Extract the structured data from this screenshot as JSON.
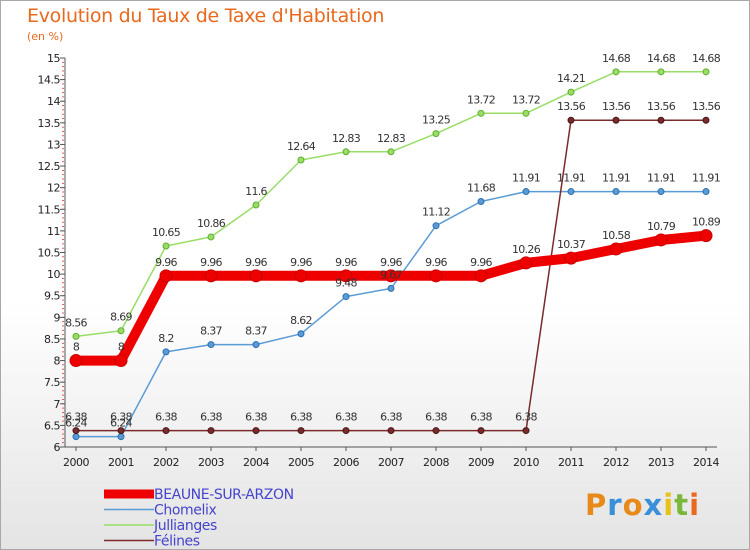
{
  "title": "Evolution du Taux de Taxe d'Habitation",
  "subtitle": "(en %)",
  "logo": {
    "text": "Proxiti",
    "letter_colors": [
      "#e88a1a",
      "#3a8fd8",
      "#e88a1a",
      "#3a8fd8",
      "#e8c21a",
      "#7ab83a",
      "#e8681e"
    ]
  },
  "chart_data": {
    "type": "line",
    "x": [
      2000,
      2001,
      2002,
      2003,
      2004,
      2005,
      2006,
      2007,
      2008,
      2009,
      2010,
      2011,
      2012,
      2013,
      2014
    ],
    "ylim": [
      6,
      15
    ],
    "yticks": [
      "6",
      "6.5",
      "7",
      "7.5",
      "8",
      "8.5",
      "9",
      "9.5",
      "10",
      "10.5",
      "11",
      "11.5",
      "12",
      "12.5",
      "13",
      "13.5",
      "14",
      "14.5",
      "15"
    ],
    "grid": false,
    "legend_position": "bottom-left",
    "series": [
      {
        "name": "BEAUNE-SUR-ARZON",
        "color": "#ee0000",
        "width": 10,
        "values": [
          8,
          8,
          9.96,
          9.96,
          9.96,
          9.96,
          9.96,
          9.96,
          9.96,
          9.96,
          10.26,
          10.37,
          10.58,
          10.79,
          10.89
        ],
        "labels": [
          "8",
          "8",
          "9.96",
          "9.96",
          "9.96",
          "9.96",
          "9.96",
          "9.96",
          "9.96",
          "9.96",
          "10.26",
          "10.37",
          "10.58",
          "10.79",
          "10.89"
        ]
      },
      {
        "name": "Chomelix",
        "color": "#5b9bd5",
        "width": 1.5,
        "values": [
          6.24,
          6.24,
          8.2,
          8.37,
          8.37,
          8.62,
          9.48,
          9.67,
          11.12,
          11.68,
          11.91,
          11.91,
          11.91,
          11.91,
          11.91
        ],
        "labels": [
          "6.24",
          "6.24",
          "8.2",
          "8.37",
          "8.37",
          "8.62",
          "9.48",
          "9.67",
          "11.12",
          "11.68",
          "11.91",
          "11.91",
          "11.91",
          "11.91",
          "11.91"
        ]
      },
      {
        "name": "Jullianges",
        "color": "#99dd66",
        "width": 1.5,
        "values": [
          8.56,
          8.69,
          10.65,
          10.86,
          11.6,
          12.64,
          12.83,
          12.83,
          13.25,
          13.72,
          13.72,
          14.21,
          14.68,
          14.68,
          14.68
        ],
        "labels": [
          "8.56",
          "8.69",
          "10.65",
          "10.86",
          "11.6",
          "12.64",
          "12.83",
          "12.83",
          "13.25",
          "13.72",
          "13.72",
          "14.21",
          "14.68",
          "14.68",
          "14.68"
        ]
      },
      {
        "name": "Félines",
        "color": "#7a2a2a",
        "width": 1.5,
        "values": [
          6.38,
          6.38,
          6.38,
          6.38,
          6.38,
          6.38,
          6.38,
          6.38,
          6.38,
          6.38,
          6.38,
          13.56,
          13.56,
          13.56,
          13.56
        ],
        "labels": [
          "6.38",
          "6.38",
          "6.38",
          "6.38",
          "6.38",
          "6.38",
          "6.38",
          "6.38",
          "6.38",
          "6.38",
          "6.38",
          "13.56",
          "13.56",
          "13.56",
          "13.56"
        ]
      }
    ]
  }
}
